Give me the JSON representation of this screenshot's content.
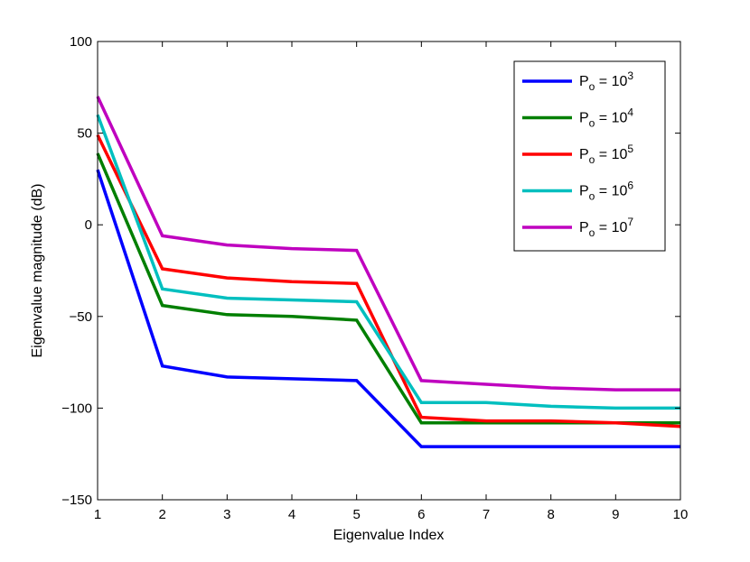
{
  "chart_data": {
    "type": "line",
    "xlabel": "Eigenvalue Index",
    "ylabel": "Eigenvalue magnitude (dB)",
    "xlim": [
      1,
      10
    ],
    "ylim": [
      -150,
      100
    ],
    "xticks": [
      1,
      2,
      3,
      4,
      5,
      6,
      7,
      8,
      9,
      10
    ],
    "yticks": [
      -150,
      -100,
      -50,
      0,
      50,
      100
    ],
    "ytick_labels": [
      "−150",
      "−100",
      "−50",
      "0",
      "50",
      "100"
    ],
    "grid": false,
    "legend_position": "top-right",
    "x": [
      1,
      2,
      3,
      4,
      5,
      6,
      7,
      8,
      9,
      10
    ],
    "series": [
      {
        "name": "P_o = 10^3",
        "label_base": "P",
        "label_sub": "o",
        "label_eq": " = 10",
        "label_sup": "3",
        "color": "#0000ff",
        "values": [
          30,
          -77,
          -83,
          -84,
          -85,
          -121,
          -121,
          -121,
          -121,
          -121
        ]
      },
      {
        "name": "P_o = 10^4",
        "label_base": "P",
        "label_sub": "o",
        "label_eq": " = 10",
        "label_sup": "4",
        "color": "#007f00",
        "values": [
          39,
          -44,
          -49,
          -50,
          -52,
          -108,
          -108,
          -108,
          -108,
          -108
        ]
      },
      {
        "name": "P_o = 10^5",
        "label_base": "P",
        "label_sub": "o",
        "label_eq": " = 10",
        "label_sup": "5",
        "color": "#ff0000",
        "values": [
          49,
          -24,
          -29,
          -31,
          -32,
          -105,
          -107,
          -107,
          -108,
          -110
        ]
      },
      {
        "name": "P_o = 10^6",
        "label_base": "P",
        "label_sub": "o",
        "label_eq": " = 10",
        "label_sup": "6",
        "color": "#00bfbf",
        "values": [
          60,
          -35,
          -40,
          -41,
          -42,
          -97,
          -97,
          -99,
          -100,
          -100
        ]
      },
      {
        "name": "P_o = 10^7",
        "label_base": "P",
        "label_sub": "o",
        "label_eq": " = 10",
        "label_sup": "7",
        "color": "#bf00bf",
        "values": [
          70,
          -6,
          -11,
          -13,
          -14,
          -85,
          -87,
          -89,
          -90,
          -90
        ]
      }
    ]
  }
}
